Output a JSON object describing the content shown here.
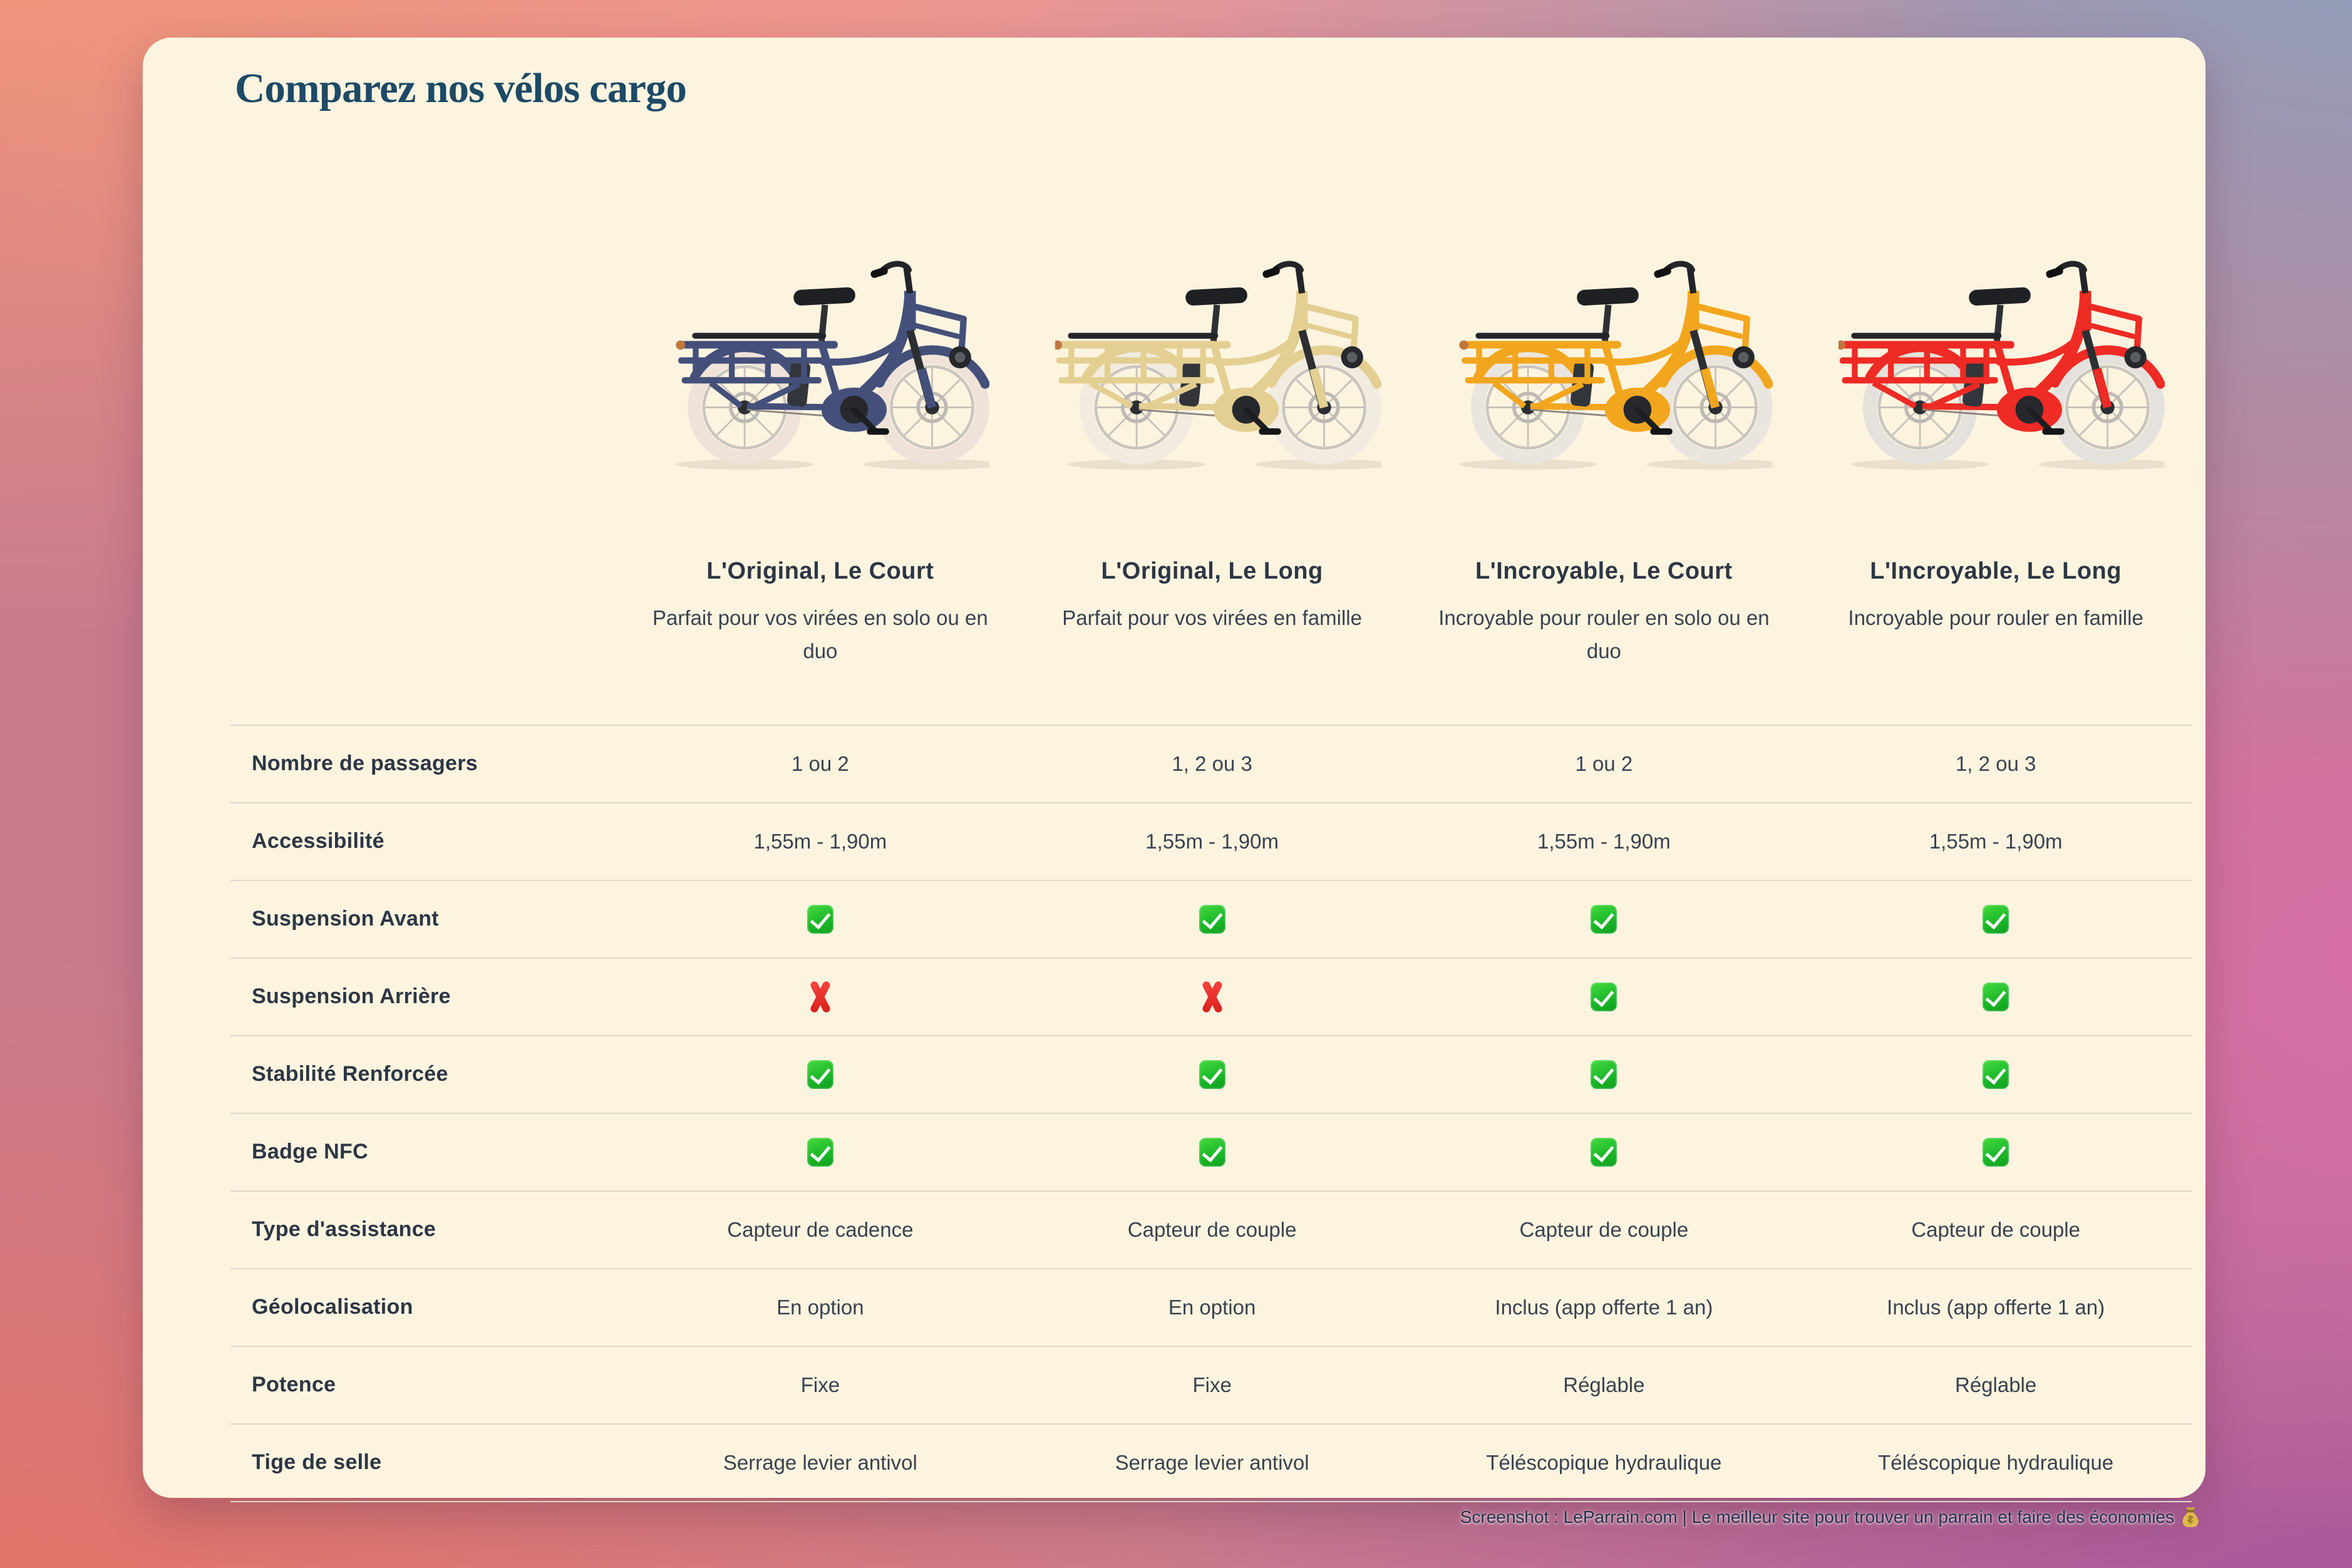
{
  "page": {
    "title": "Comparez nos vélos cargo"
  },
  "theme": {
    "card": "#fdf4e0",
    "title": "#1d4a66",
    "label": "#2c3644",
    "divider": "#dcd8cb",
    "check_green": "#1db92a",
    "cross_red": "#d8201d",
    "background": {
      "top_left": "#f69876",
      "top_center": "#f9a5a4",
      "top_right": "#8ca3c1",
      "right": "#d86eaa",
      "bottom_right": "#a4529e",
      "bottom_left": "#eb735f"
    }
  },
  "bikes": [
    {
      "name": "L'Original, Le Court",
      "description": "Parfait pour vos virées en solo ou en duo",
      "frame_color": "#44507a",
      "tire_color": "#efe2d9",
      "variant": "short"
    },
    {
      "name": "L'Original, Le Long",
      "description": "Parfait pour vos virées en famille",
      "frame_color": "#e4cf92",
      "tire_color": "#f1ebe0",
      "variant": "long"
    },
    {
      "name": "L'Incroyable, Le Court",
      "description": "Incroyable pour rouler en solo ou en duo",
      "frame_color": "#f2a61e",
      "tire_color": "#eae5de",
      "variant": "short"
    },
    {
      "name": "L'Incroyable, Le Long",
      "description": "Incroyable pour rouler en famille",
      "frame_color": "#ee2b24",
      "tire_color": "#e5e1dc",
      "variant": "long"
    }
  ],
  "table": {
    "rows": [
      {
        "label": "Nombre de passagers",
        "values": [
          {
            "type": "text",
            "text": "1 ou 2"
          },
          {
            "type": "text",
            "text": "1, 2 ou 3"
          },
          {
            "type": "text",
            "text": "1 ou 2"
          },
          {
            "type": "text",
            "text": "1, 2 ou 3"
          }
        ]
      },
      {
        "label": "Accessibilité",
        "values": [
          {
            "type": "text",
            "text": "1,55m - 1,90m"
          },
          {
            "type": "text",
            "text": "1,55m - 1,90m"
          },
          {
            "type": "text",
            "text": "1,55m - 1,90m"
          },
          {
            "type": "text",
            "text": "1,55m - 1,90m"
          }
        ]
      },
      {
        "label": "Suspension Avant",
        "values": [
          {
            "type": "icon",
            "icon": "check"
          },
          {
            "type": "icon",
            "icon": "check"
          },
          {
            "type": "icon",
            "icon": "check"
          },
          {
            "type": "icon",
            "icon": "check"
          }
        ]
      },
      {
        "label": "Suspension Arrière",
        "values": [
          {
            "type": "icon",
            "icon": "cross"
          },
          {
            "type": "icon",
            "icon": "cross"
          },
          {
            "type": "icon",
            "icon": "check"
          },
          {
            "type": "icon",
            "icon": "check"
          }
        ]
      },
      {
        "label": "Stabilité Renforcée",
        "values": [
          {
            "type": "icon",
            "icon": "check"
          },
          {
            "type": "icon",
            "icon": "check"
          },
          {
            "type": "icon",
            "icon": "check"
          },
          {
            "type": "icon",
            "icon": "check"
          }
        ]
      },
      {
        "label": "Badge NFC",
        "values": [
          {
            "type": "icon",
            "icon": "check"
          },
          {
            "type": "icon",
            "icon": "check"
          },
          {
            "type": "icon",
            "icon": "check"
          },
          {
            "type": "icon",
            "icon": "check"
          }
        ]
      },
      {
        "label": "Type d'assistance",
        "values": [
          {
            "type": "text",
            "text": "Capteur de cadence"
          },
          {
            "type": "text",
            "text": "Capteur de couple"
          },
          {
            "type": "text",
            "text": "Capteur de couple"
          },
          {
            "type": "text",
            "text": "Capteur de couple"
          }
        ]
      },
      {
        "label": "Géolocalisation",
        "values": [
          {
            "type": "text",
            "text": "En option"
          },
          {
            "type": "text",
            "text": "En option"
          },
          {
            "type": "text",
            "text": "Inclus (app offerte 1 an)"
          },
          {
            "type": "text",
            "text": "Inclus (app offerte 1 an)"
          }
        ]
      },
      {
        "label": "Potence",
        "values": [
          {
            "type": "text",
            "text": "Fixe"
          },
          {
            "type": "text",
            "text": "Fixe"
          },
          {
            "type": "text",
            "text": "Réglable"
          },
          {
            "type": "text",
            "text": "Réglable"
          }
        ]
      },
      {
        "label": "Tige de selle",
        "values": [
          {
            "type": "text",
            "text": "Serrage levier antivol"
          },
          {
            "type": "text",
            "text": "Serrage levier antivol"
          },
          {
            "type": "text",
            "text": "Téléscopique hydraulique"
          },
          {
            "type": "text",
            "text": "Téléscopique hydraulique"
          }
        ]
      }
    ]
  },
  "footer": {
    "credit_text": "Screenshot : LeParrain.com | Le meilleur site pour trouver un parrain et faire des économies",
    "credit_emoji": "💰"
  }
}
